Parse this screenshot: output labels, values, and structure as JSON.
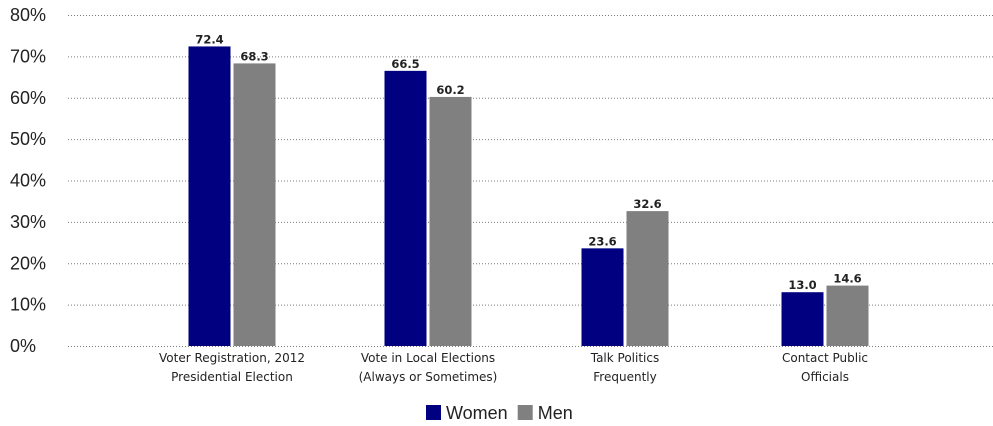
{
  "chart_data": {
    "type": "bar",
    "categories": [
      [
        "Voter Registration, 2012",
        "Presidential Election"
      ],
      [
        "Vote in Local Elections",
        "(Always or Sometimes)"
      ],
      [
        "Talk Politics",
        "Frequently"
      ],
      [
        "Contact Public",
        "Officials"
      ]
    ],
    "series": [
      {
        "name": "Women",
        "color": "#000080",
        "values": [
          72.4,
          66.5,
          23.6,
          13.0
        ],
        "labels": [
          "72.4",
          "66.5",
          "23.6",
          "13.0"
        ]
      },
      {
        "name": "Men",
        "color": "#808080",
        "values": [
          68.3,
          60.2,
          32.6,
          14.6
        ],
        "labels": [
          "68.3",
          "60.2",
          "32.6",
          "14.6"
        ]
      }
    ],
    "ylim": [
      0,
      80
    ],
    "yticks": [
      0,
      10,
      20,
      30,
      40,
      50,
      60,
      70,
      80
    ],
    "ytick_labels": [
      "0%",
      "10%",
      "20%",
      "30%",
      "40%",
      "50%",
      "60%",
      "70%",
      "80%"
    ],
    "grid": true,
    "legend": "bottom-center"
  }
}
